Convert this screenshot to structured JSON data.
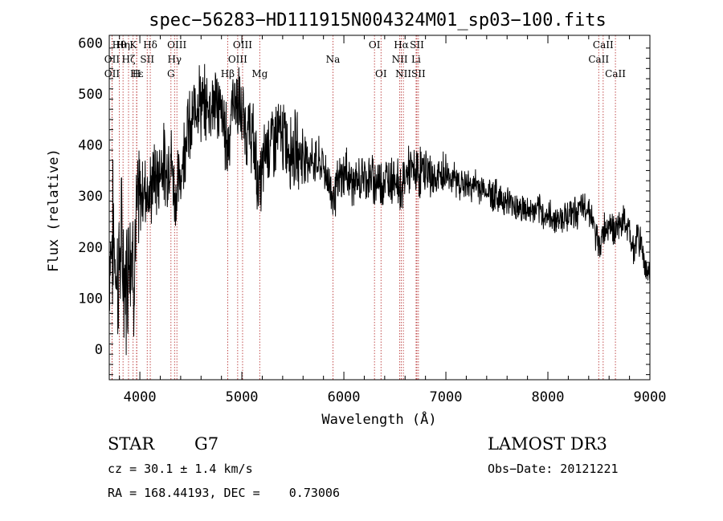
{
  "chart_data": {
    "type": "line",
    "title": "spec−56283−HD111915N004324M01_sp03−100.fits",
    "xlabel": "Wavelength (Å)",
    "ylabel": "Flux (relative)",
    "xlim": [
      3700,
      9000
    ],
    "ylim": [
      -60,
      615
    ],
    "x_ticks": [
      4000,
      5000,
      6000,
      7000,
      8000,
      9000
    ],
    "y_ticks": [
      0,
      100,
      200,
      300,
      400,
      500,
      600
    ],
    "x_tick_labels": [
      "4000",
      "5000",
      "6000",
      "7000",
      "8000",
      "9000"
    ],
    "y_tick_labels": [
      "0",
      "100",
      "200",
      "300",
      "400",
      "500",
      "600"
    ],
    "line_color": "#000000",
    "marker_color": "#b22222",
    "spectrum": {
      "x": [
        3700,
        3740,
        3780,
        3820,
        3860,
        3900,
        3940,
        3980,
        4020,
        4060,
        4100,
        4140,
        4180,
        4220,
        4260,
        4300,
        4340,
        4380,
        4420,
        4460,
        4500,
        4560,
        4620,
        4680,
        4740,
        4800,
        4861,
        4920,
        4980,
        5040,
        5100,
        5175,
        5240,
        5300,
        5380,
        5450,
        5520,
        5600,
        5700,
        5800,
        5895,
        5960,
        6020,
        6100,
        6200,
        6300,
        6400,
        6500,
        6563,
        6620,
        6700,
        6800,
        6900,
        7000,
        7100,
        7200,
        7300,
        7400,
        7500,
        7600,
        7700,
        7800,
        7900,
        8000,
        8100,
        8200,
        8300,
        8400,
        8498,
        8542,
        8600,
        8662,
        8720,
        8780,
        8820,
        8850,
        8880,
        8920,
        8960,
        9000
      ],
      "y": [
        190,
        220,
        140,
        200,
        120,
        230,
        170,
        260,
        310,
        320,
        300,
        340,
        330,
        380,
        340,
        390,
        300,
        320,
        370,
        440,
        420,
        500,
        470,
        480,
        490,
        460,
        400,
        500,
        470,
        430,
        420,
        310,
        400,
        410,
        420,
        400,
        390,
        380,
        370,
        360,
        300,
        330,
        350,
        320,
        340,
        330,
        330,
        340,
        310,
        350,
        345,
        350,
        330,
        345,
        330,
        320,
        320,
        310,
        300,
        290,
        280,
        270,
        270,
        260,
        255,
        265,
        270,
        280,
        200,
        230,
        250,
        230,
        250,
        240,
        210,
        190,
        230,
        200,
        160,
        150
      ]
    },
    "lines": [
      {
        "name": "Hθ",
        "x": 3798,
        "row": 1
      },
      {
        "name": "OII",
        "x": 3727,
        "row": 2
      },
      {
        "name": "OII",
        "x": 3727,
        "row": 3
      },
      {
        "name": "Hη",
        "x": 3835,
        "row": 1
      },
      {
        "name": "Hζ",
        "x": 3889,
        "row": 2
      },
      {
        "name": "Hε",
        "x": 3970,
        "row": 3
      },
      {
        "name": "K",
        "x": 3934,
        "row": 1
      },
      {
        "name": "H",
        "x": 3968,
        "row": 3
      },
      {
        "name": "SII",
        "x": 4072,
        "row": 2
      },
      {
        "name": "Hδ",
        "x": 4102,
        "row": 1
      },
      {
        "name": "OIII",
        "x": 4363,
        "row": 1
      },
      {
        "name": "Hγ",
        "x": 4340,
        "row": 2
      },
      {
        "name": "G",
        "x": 4305,
        "row": 3
      },
      {
        "name": "OIII",
        "x": 5007,
        "row": 1
      },
      {
        "name": "OIII",
        "x": 4959,
        "row": 2
      },
      {
        "name": "Hβ",
        "x": 4861,
        "row": 3
      },
      {
        "name": "Mg",
        "x": 5175,
        "row": 3
      },
      {
        "name": "Na",
        "x": 5893,
        "row": 2
      },
      {
        "name": "OI",
        "x": 6300,
        "row": 1
      },
      {
        "name": "OI",
        "x": 6364,
        "row": 3
      },
      {
        "name": "Hα",
        "x": 6563,
        "row": 1
      },
      {
        "name": "NII",
        "x": 6548,
        "row": 2
      },
      {
        "name": "NII",
        "x": 6583,
        "row": 3
      },
      {
        "name": "SII",
        "x": 6716,
        "row": 1
      },
      {
        "name": "Li",
        "x": 6708,
        "row": 2
      },
      {
        "name": "SII",
        "x": 6731,
        "row": 3
      },
      {
        "name": "CaII",
        "x": 8542,
        "row": 1
      },
      {
        "name": "CaII",
        "x": 8498,
        "row": 2
      },
      {
        "name": "CaII",
        "x": 8662,
        "row": 3
      }
    ]
  },
  "info": {
    "object_type": "STAR",
    "subclass": "G7",
    "survey": "LAMOST DR3",
    "cz": "cz = 30.1 ± 1.4 km/s",
    "obs_date": "Obs−Date: 20121221",
    "coords": "RA = 168.44193, DEC =    0.73006"
  }
}
